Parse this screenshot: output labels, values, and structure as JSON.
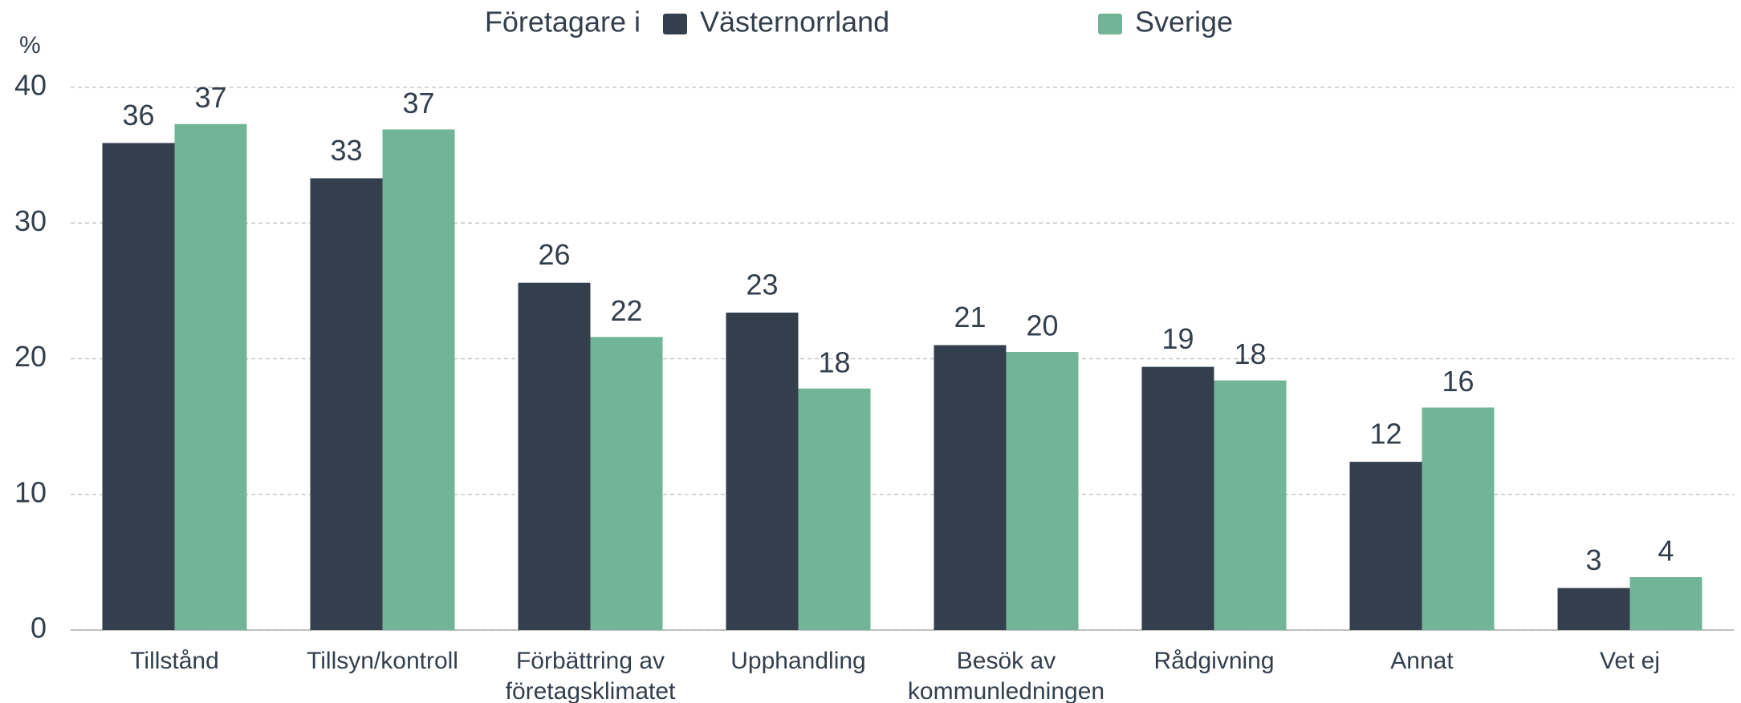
{
  "chart_data": {
    "type": "bar",
    "legend_title": "Företagare i",
    "y_label": "%",
    "categories": [
      [
        "Tillstånd"
      ],
      [
        "Tillsyn/kontroll"
      ],
      [
        "Förbättring av",
        "företagsklimatet"
      ],
      [
        "Upphandling"
      ],
      [
        "Besök av",
        "kommunledningen"
      ],
      [
        "Rådgivning"
      ],
      [
        "Annat"
      ],
      [
        "Vet ej"
      ]
    ],
    "series": [
      {
        "name": "Västernorrland",
        "color": "#333f4c",
        "values": [
          35.9,
          33.3,
          25.6,
          23.4,
          21.0,
          19.4,
          12.4,
          3.1
        ],
        "value_labels": [
          "36",
          "33",
          "26",
          "23",
          "21",
          "19",
          "12",
          "3"
        ]
      },
      {
        "name": "Sverige",
        "color": "#72b497",
        "values": [
          37.3,
          36.9,
          21.6,
          17.8,
          20.5,
          18.4,
          16.4,
          3.9
        ],
        "value_labels": [
          "37",
          "37",
          "22",
          "18",
          "20",
          "18",
          "16",
          "4"
        ]
      }
    ],
    "ylim": [
      0,
      40
    ],
    "yticks": [
      0,
      10,
      20,
      30,
      40
    ],
    "grid": true,
    "legend": "top"
  }
}
